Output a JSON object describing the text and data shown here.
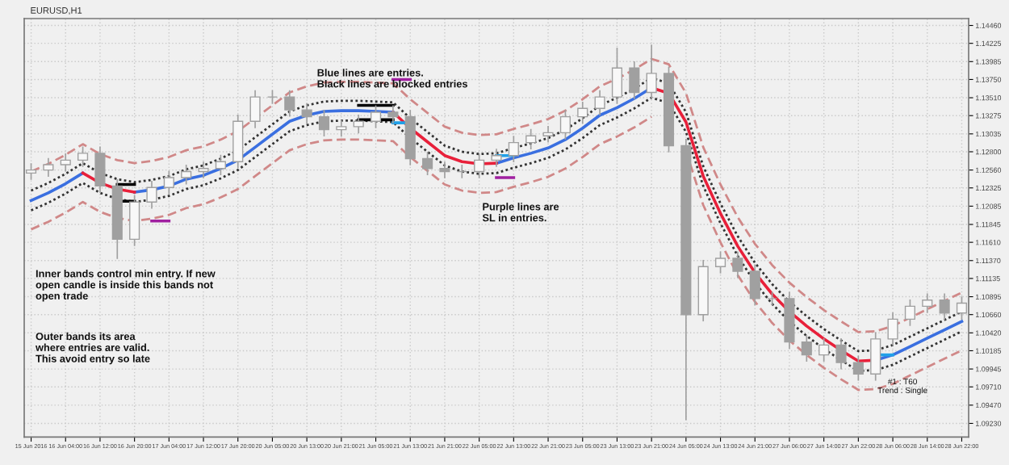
{
  "chart_data": {
    "type": "candlestick",
    "title": "EURUSD,H1",
    "categories": [
      "15 Jun 2016",
      null,
      "16 Jun 04:00",
      null,
      "16 Jun 12:00",
      null,
      "16 Jun 20:00",
      null,
      "17 Jun 04:00",
      null,
      "17 Jun 12:00",
      null,
      "17 Jun 20:00",
      null,
      "20 Jun 05:00",
      null,
      "20 Jun 13:00",
      null,
      "20 Jun 21:00",
      null,
      "21 Jun 05:00",
      null,
      "21 Jun 13:00",
      null,
      "21 Jun 21:00",
      null,
      "22 Jun 05:00",
      null,
      "22 Jun 13:00",
      null,
      "22 Jun 21:00",
      null,
      "23 Jun 05:00",
      null,
      "23 Jun 13:00",
      null,
      "23 Jun 21:00",
      null,
      "24 Jun 05:00",
      null,
      "24 Jun 13:00",
      null,
      "24 Jun 21:00",
      null,
      "27 Jun 06:00",
      null,
      "27 Jun 14:00",
      null,
      "27 Jun 22:00",
      null,
      "28 Jun 06:00",
      null,
      "28 Jun 14:00",
      null,
      "28 Jun 22:00"
    ],
    "ohlc": [
      [
        1.1252,
        1.1264,
        1.1244,
        1.1256
      ],
      [
        1.1256,
        1.1271,
        1.1248,
        1.1263
      ],
      [
        1.1263,
        1.1277,
        1.1255,
        1.1269
      ],
      [
        1.1269,
        1.1286,
        1.1261,
        1.1278
      ],
      [
        1.1278,
        1.1286,
        1.1227,
        1.1235
      ],
      [
        1.1235,
        1.1243,
        1.114,
        1.1165
      ],
      [
        1.1165,
        1.1222,
        1.1157,
        1.1214
      ],
      [
        1.1214,
        1.1241,
        1.1206,
        1.1233
      ],
      [
        1.1233,
        1.1254,
        1.1225,
        1.1246
      ],
      [
        1.1246,
        1.1262,
        1.1238,
        1.1254
      ],
      [
        1.1254,
        1.1266,
        1.1246,
        1.1258
      ],
      [
        1.1258,
        1.1275,
        1.125,
        1.1267
      ],
      [
        1.1267,
        1.1328,
        1.1259,
        1.132
      ],
      [
        1.132,
        1.136,
        1.1312,
        1.1352
      ],
      [
        1.1352,
        1.136,
        1.1344,
        1.1352
      ],
      [
        1.1352,
        1.136,
        1.1327,
        1.1335
      ],
      [
        1.1335,
        1.1343,
        1.1318,
        1.1326
      ],
      [
        1.1326,
        1.1334,
        1.1301,
        1.1309
      ],
      [
        1.1309,
        1.1321,
        1.1301,
        1.1313
      ],
      [
        1.1313,
        1.1328,
        1.1305,
        1.132
      ],
      [
        1.132,
        1.134,
        1.1312,
        1.1332
      ],
      [
        1.1332,
        1.134,
        1.1318,
        1.1326
      ],
      [
        1.1326,
        1.1334,
        1.1263,
        1.1271
      ],
      [
        1.1271,
        1.1279,
        1.125,
        1.1258
      ],
      [
        1.1258,
        1.1266,
        1.1246,
        1.1254
      ],
      [
        1.1254,
        1.1262,
        1.1246,
        1.1254
      ],
      [
        1.1254,
        1.1277,
        1.1246,
        1.1269
      ],
      [
        1.1269,
        1.1283,
        1.1261,
        1.1275
      ],
      [
        1.1275,
        1.13,
        1.1267,
        1.1292
      ],
      [
        1.1292,
        1.1309,
        1.1284,
        1.1301
      ],
      [
        1.1301,
        1.1313,
        1.1293,
        1.1305
      ],
      [
        1.1305,
        1.1334,
        1.1297,
        1.1326
      ],
      [
        1.1326,
        1.1345,
        1.1318,
        1.1337
      ],
      [
        1.1337,
        1.136,
        1.1329,
        1.1352
      ],
      [
        1.1352,
        1.1416,
        1.1344,
        1.139
      ],
      [
        1.139,
        1.1398,
        1.135,
        1.1358
      ],
      [
        1.1358,
        1.142,
        1.135,
        1.1383
      ],
      [
        1.1383,
        1.1391,
        1.128,
        1.1288
      ],
      [
        1.1288,
        1.1296,
        1.0928,
        1.1066
      ],
      [
        1.1066,
        1.1137,
        1.1058,
        1.1129
      ],
      [
        1.1129,
        1.1148,
        1.1121,
        1.114
      ],
      [
        1.114,
        1.1148,
        1.1115,
        1.1123
      ],
      [
        1.1123,
        1.1131,
        1.1079,
        1.1087
      ],
      [
        1.1087,
        1.1095,
        1.1079,
        1.1087
      ],
      [
        1.1087,
        1.1095,
        1.1022,
        1.103
      ],
      [
        1.103,
        1.1038,
        1.1005,
        1.1013
      ],
      [
        1.1013,
        1.1034,
        1.1005,
        1.1026
      ],
      [
        1.1026,
        1.1034,
        1.0995,
        1.1003
      ],
      [
        1.1003,
        1.1011,
        1.098,
        1.0988
      ],
      [
        1.0988,
        1.1042,
        1.098,
        1.1034
      ],
      [
        1.1034,
        1.1068,
        1.1026,
        1.106
      ],
      [
        1.106,
        1.1085,
        1.1052,
        1.1077
      ],
      [
        1.1077,
        1.1093,
        1.1069,
        1.1085
      ],
      [
        1.1085,
        1.1093,
        1.106,
        1.1068
      ],
      [
        1.1068,
        1.1089,
        1.106,
        1.1081
      ]
    ],
    "color": "#a0a0a0",
    "series": [
      {
        "type": "line",
        "color": "#d08888",
        "line_style": "dashed",
        "values": [
          1.1254,
          1.1264,
          1.1276,
          1.129,
          1.1277,
          1.1269,
          1.1265,
          1.1268,
          1.1273,
          1.1282,
          1.1287,
          1.1296,
          1.1307,
          1.1324,
          1.1341,
          1.1358,
          1.1366,
          1.1371,
          1.1372,
          1.1372,
          1.1371,
          1.137,
          1.1349,
          1.1331,
          1.1313,
          1.1305,
          1.1302,
          1.1303,
          1.131,
          1.1316,
          1.1323,
          1.1334,
          1.1349,
          1.1366,
          1.1376,
          1.1388,
          1.1402,
          1.1395,
          1.1357,
          1.1286,
          1.1237,
          1.1194,
          1.1159,
          1.1131,
          1.1108,
          1.1089,
          1.1072,
          1.1057,
          1.1043,
          1.1044,
          1.1051,
          1.1062,
          1.1073,
          1.1084,
          1.1095
        ]
      },
      {
        "type": "line",
        "color": "#d08888",
        "line_style": "dashed",
        "values": [
          1.1178,
          1.1188,
          1.12,
          1.1214,
          1.1201,
          1.1193,
          1.1189,
          1.1192,
          1.1197,
          1.1206,
          1.1211,
          1.122,
          1.1231,
          1.1248,
          1.1265,
          1.1282,
          1.129,
          1.1295,
          1.1296,
          1.1296,
          1.1295,
          1.1294,
          1.1273,
          1.1255,
          1.1237,
          1.1229,
          1.1226,
          1.1227,
          1.1234,
          1.124,
          1.1247,
          1.1258,
          1.1273,
          1.129,
          1.13,
          1.1312,
          1.1326,
          null,
          1.1281,
          1.121,
          1.1161,
          1.1118,
          1.1083,
          1.1055,
          1.1032,
          1.1013,
          1.0996,
          1.0981,
          1.0967,
          1.0968,
          1.0975,
          1.0986,
          1.0997,
          1.1008,
          1.1019
        ]
      },
      {
        "type": "line",
        "color": "#333333",
        "line_style": "dotted",
        "values": [
          1.1229,
          1.1239,
          1.1251,
          1.1265,
          1.1252,
          1.1244,
          1.124,
          1.1243,
          1.1248,
          1.1257,
          1.1262,
          1.1271,
          1.1282,
          1.1299,
          1.1316,
          1.1333,
          1.1341,
          1.1346,
          1.1347,
          1.1347,
          1.1346,
          1.1345,
          1.1324,
          1.1306,
          1.1288,
          1.128,
          1.1277,
          1.1278,
          1.1285,
          1.1291,
          1.1298,
          1.1309,
          1.1324,
          1.1341,
          1.1351,
          1.1363,
          1.1377,
          1.137,
          1.1332,
          1.1261,
          1.1212,
          1.1169,
          1.1134,
          1.1106,
          1.1083,
          1.1064,
          1.1047,
          1.1032,
          1.1018,
          1.1019,
          1.1026,
          1.1037,
          1.1048,
          1.1059,
          1.107
        ]
      },
      {
        "type": "line",
        "color": "#333333",
        "line_style": "dotted",
        "values": [
          1.1203,
          1.1213,
          1.1225,
          1.1239,
          1.1226,
          1.1218,
          1.1214,
          1.1217,
          1.1222,
          1.1231,
          1.1236,
          1.1245,
          1.1256,
          1.1273,
          1.129,
          1.1307,
          1.1315,
          1.132,
          1.1321,
          1.1321,
          1.132,
          1.1319,
          1.1298,
          1.128,
          1.1262,
          1.1254,
          1.1251,
          1.1252,
          1.1259,
          1.1265,
          1.1272,
          1.1283,
          1.1298,
          1.1315,
          1.1325,
          1.1337,
          1.1351,
          1.1344,
          1.1306,
          1.1235,
          1.1186,
          1.1143,
          1.1108,
          1.108,
          1.1057,
          1.1038,
          1.1021,
          1.1006,
          1.0992,
          1.0993,
          1.1,
          1.1011,
          1.1022,
          1.1033,
          1.1044
        ]
      },
      {
        "type": "line",
        "color": "#3a6fe0",
        "line_style": "solid",
        "values": [
          1.1216,
          1.1226,
          1.1238,
          1.1252,
          null,
          null,
          1.1227,
          1.123,
          1.1235,
          1.1244,
          1.1249,
          1.1258,
          1.1269,
          1.1286,
          1.1303,
          1.132,
          1.1328,
          1.1333,
          1.1334,
          1.1334,
          1.1333,
          1.1332,
          null,
          null,
          null,
          null,
          null,
          1.1265,
          1.1272,
          1.1278,
          1.1285,
          1.1296,
          1.1311,
          1.1328,
          1.1338,
          1.135,
          1.1364,
          null,
          null,
          null,
          null,
          null,
          null,
          null,
          null,
          null,
          null,
          null,
          null,
          1.1006,
          1.1013,
          1.1024,
          1.1035,
          1.1046,
          1.1057
        ]
      },
      {
        "type": "line",
        "color": "#e8203a",
        "line_style": "solid",
        "values": [
          null,
          null,
          null,
          1.1252,
          1.1239,
          1.1231,
          1.1227,
          null,
          null,
          null,
          null,
          null,
          null,
          null,
          null,
          null,
          null,
          null,
          null,
          null,
          null,
          1.1332,
          1.1311,
          1.1293,
          1.1275,
          1.1267,
          1.1264,
          1.1265,
          null,
          null,
          null,
          null,
          null,
          null,
          null,
          null,
          1.1364,
          1.1357,
          1.1319,
          1.1248,
          1.1199,
          1.1156,
          1.1121,
          1.1093,
          1.107,
          1.1051,
          1.1034,
          1.1019,
          1.1005,
          1.1006,
          null,
          null,
          null,
          null,
          null
        ]
      },
      {
        "type": "line",
        "color": "#000000",
        "line_style": "solid",
        "values": [
          null,
          null,
          null,
          null,
          null,
          1.1237,
          1.1237,
          null,
          null,
          null,
          null,
          null,
          null,
          null,
          null,
          null,
          null,
          null,
          null,
          1.1341,
          1.1341,
          1.1341,
          null,
          null,
          null,
          null,
          null,
          null,
          null,
          null,
          null,
          null,
          null,
          null,
          null,
          null,
          null,
          null,
          null,
          null,
          null,
          null,
          null,
          null,
          null,
          null,
          null,
          null,
          null,
          null,
          null,
          null,
          null,
          null,
          null
        ]
      },
      {
        "type": "line",
        "color": "#000000",
        "line_style": "solid",
        "values": [
          null,
          null,
          null,
          null,
          null,
          1.1215,
          1.1215,
          null,
          null,
          null,
          null,
          null,
          null,
          null,
          null,
          null,
          null,
          null,
          null,
          1.1322,
          1.1322,
          1.1322,
          null,
          null,
          null,
          null,
          null,
          null,
          null,
          null,
          null,
          null,
          null,
          null,
          null,
          null,
          null,
          null,
          null,
          null,
          null,
          null,
          null,
          null,
          null,
          null,
          null,
          null,
          null,
          null,
          null,
          null,
          null,
          null,
          null
        ]
      },
      {
        "type": "line",
        "color": "#a020a0",
        "line_style": "solid",
        "values": [
          null,
          null,
          null,
          null,
          null,
          null,
          null,
          1.1189,
          1.1189,
          null,
          null,
          null,
          null,
          null,
          null,
          null,
          null,
          null,
          null,
          null,
          null,
          1.1375,
          1.1375,
          null,
          null,
          null,
          null,
          1.1246,
          1.1246,
          null,
          null,
          null,
          null,
          null,
          null,
          null,
          null,
          null,
          null,
          null,
          null,
          null,
          null,
          null,
          null,
          null,
          null,
          null,
          null,
          null,
          null,
          null,
          null,
          null,
          null
        ]
      },
      {
        "type": "line",
        "color": "#20a0e8",
        "line_style": "solid",
        "values": [
          null,
          null,
          null,
          null,
          null,
          null,
          null,
          null,
          null,
          null,
          null,
          null,
          null,
          null,
          null,
          null,
          null,
          null,
          null,
          null,
          null,
          1.1318,
          1.1318,
          null,
          null,
          null,
          null,
          1.1275,
          1.1275,
          null,
          null,
          null,
          null,
          null,
          null,
          null,
          null,
          null,
          null,
          null,
          null,
          null,
          null,
          null,
          null,
          null,
          null,
          null,
          null,
          1.1013,
          1.1013,
          null,
          null,
          null,
          null
        ]
      }
    ],
    "ylim": [
      1.0905,
      1.1455
    ],
    "yticks": [
      {
        "value": 1.1446,
        "label": "1.14460"
      },
      {
        "value": 1.14225,
        "label": "1.14225"
      },
      {
        "value": 1.13985,
        "label": "1.13985"
      },
      {
        "value": 1.1375,
        "label": "1.13750"
      },
      {
        "value": 1.1351,
        "label": "1.13510"
      },
      {
        "value": 1.13275,
        "label": "1.13275"
      },
      {
        "value": 1.13035,
        "label": "1.13035"
      },
      {
        "value": 1.128,
        "label": "1.12800"
      },
      {
        "value": 1.1256,
        "label": "1.12560"
      },
      {
        "value": 1.12325,
        "label": "1.12325"
      },
      {
        "value": 1.12085,
        "label": "1.12085"
      },
      {
        "value": 1.11845,
        "label": "1.11845"
      },
      {
        "value": 1.1161,
        "label": "1.11610"
      },
      {
        "value": 1.1137,
        "label": "1.11370"
      },
      {
        "value": 1.11135,
        "label": "1.11135"
      },
      {
        "value": 1.10895,
        "label": "1.10895"
      },
      {
        "value": 1.1066,
        "label": "1.10660"
      },
      {
        "value": 1.1042,
        "label": "1.10420"
      },
      {
        "value": 1.10185,
        "label": "1.10185"
      },
      {
        "value": 1.09945,
        "label": "1.09945"
      },
      {
        "value": 1.0971,
        "label": "1.09710"
      },
      {
        "value": 1.0947,
        "label": "1.09470"
      },
      {
        "value": 1.0923,
        "label": "1.09230"
      }
    ],
    "grid": true,
    "annotations": [
      "Blue lines are entries.\nBlack lines are blocked entries",
      "Purple lines are\nSL in entries.",
      "Inner bands control min entry. If new\nopen candle is inside this bands not\nopen trade",
      "Outer bands its area\nwhere entries are valid.\nThis avoid entry so late",
      "#1 : T60\nTrend : Single"
    ]
  }
}
